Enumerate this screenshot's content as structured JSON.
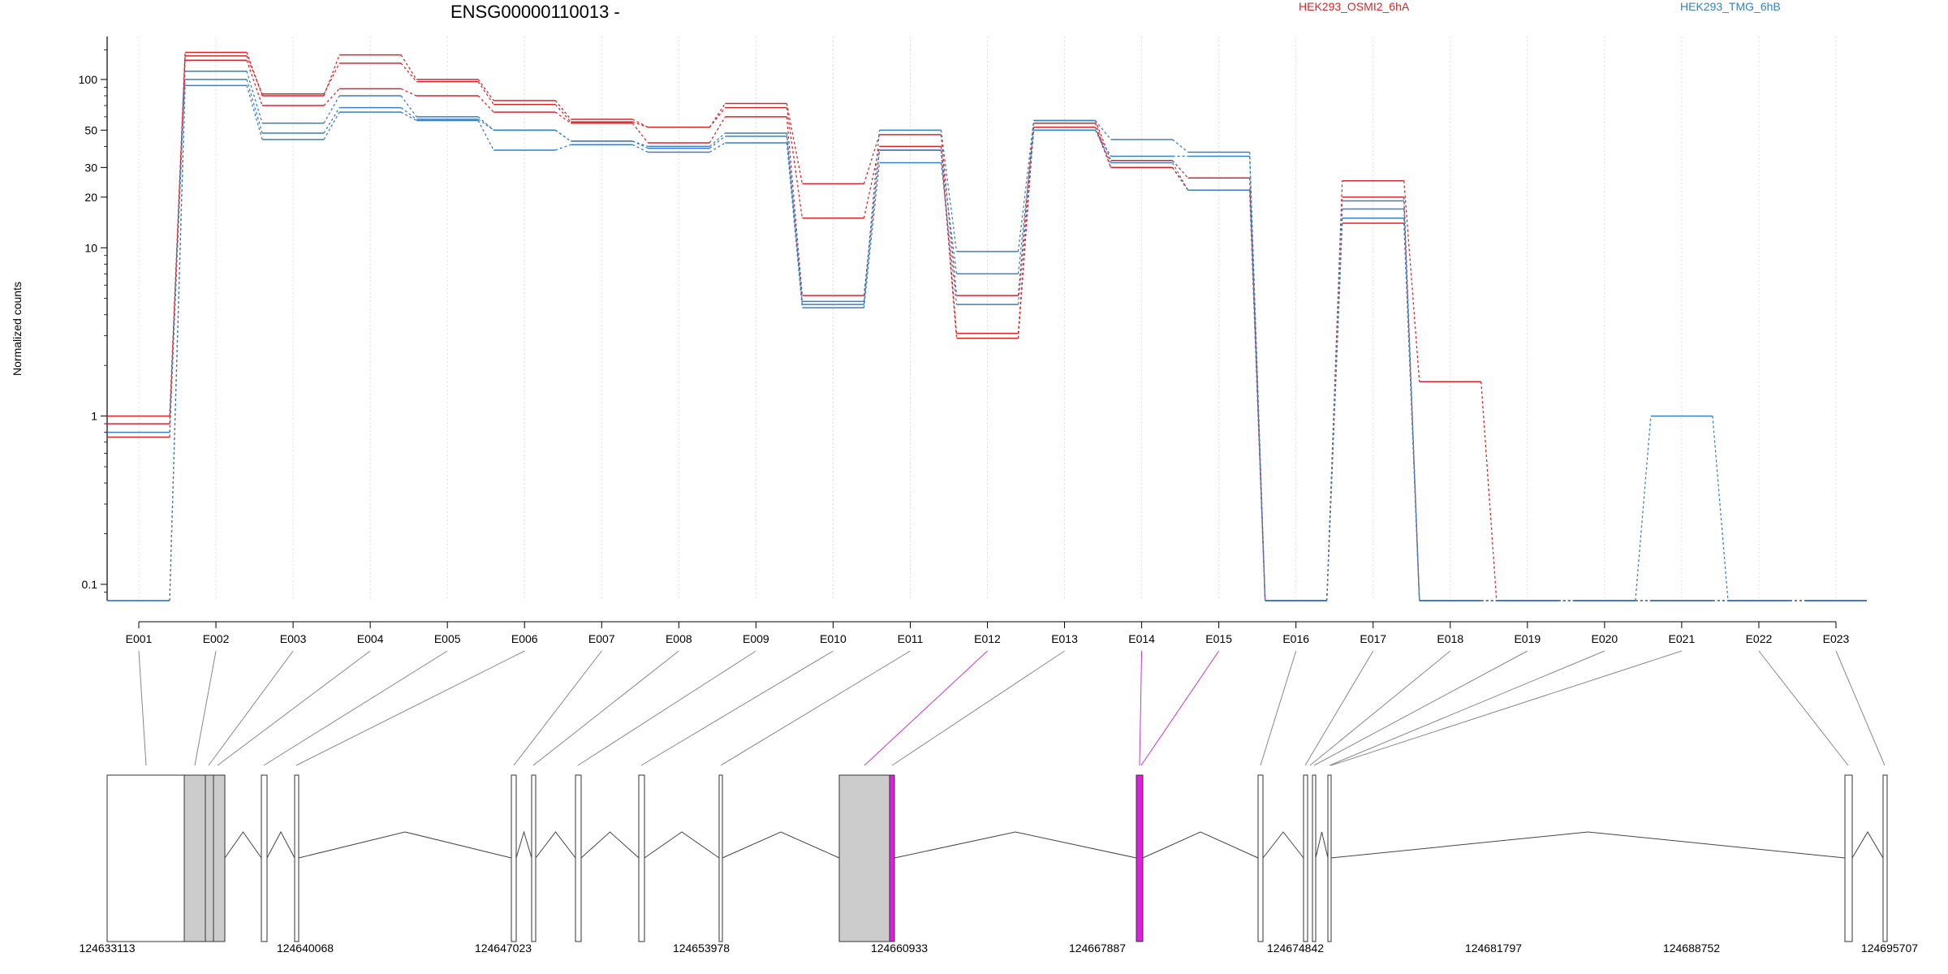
{
  "chart_data": {
    "type": "line",
    "title": "ENSG00000110013 -",
    "ylabel": "Normalized counts",
    "y_scale": "log",
    "ylim": [
      0.08,
      180
    ],
    "yticks": [
      0.1,
      1,
      10,
      20,
      30,
      50,
      100
    ],
    "ytick_labels": [
      "0.1",
      "1",
      "10",
      "20",
      "30",
      "50",
      "100"
    ],
    "grid": "vertical-dotted",
    "legend": [
      {
        "label": "HEK293_OSMI2_6hA",
        "color": "#d62728"
      },
      {
        "label": "HEK293_TMG_6hB",
        "color": "#3a7fc1"
      }
    ],
    "categories": [
      "E001",
      "E002",
      "E003",
      "E004",
      "E005",
      "E006",
      "E007",
      "E008",
      "E009",
      "E010",
      "E011",
      "E012",
      "E013",
      "E014",
      "E015",
      "E016",
      "E017",
      "E018",
      "E019",
      "E020",
      "E021",
      "E022",
      "E023"
    ],
    "series": [
      {
        "group": "red",
        "values": [
          1.0,
          145,
          80,
          140,
          100,
          75,
          58,
          52,
          72,
          24,
          47,
          5.2,
          57,
          33,
          26,
          0.08,
          25,
          1.6,
          0.08,
          0.08,
          0.08,
          0.08,
          0.08
        ]
      },
      {
        "group": "red",
        "values": [
          0.9,
          138,
          82,
          125,
          97,
          71,
          56,
          52,
          68,
          15,
          40,
          3.1,
          55,
          30,
          22,
          0.08,
          20,
          0.08,
          0.08,
          0.08,
          0.08,
          0.08,
          0.08
        ]
      },
      {
        "group": "red",
        "values": [
          0.75,
          130,
          70,
          88,
          80,
          64,
          55,
          42,
          60,
          5.2,
          38,
          2.9,
          52,
          30,
          22,
          0.08,
          14,
          0.08,
          0.08,
          0.08,
          0.08,
          0.08,
          0.08
        ]
      },
      {
        "group": "blue",
        "values": [
          0.8,
          112,
          55,
          80,
          60,
          50,
          43,
          40,
          48,
          4.8,
          50,
          9.5,
          57,
          44,
          37,
          0.08,
          19,
          0.08,
          0.08,
          0.08,
          1.0,
          0.08,
          0.08
        ]
      },
      {
        "group": "blue",
        "values": [
          0.08,
          100,
          48,
          68,
          58,
          50,
          43,
          39,
          46,
          4.6,
          38,
          7.0,
          50,
          35,
          35,
          0.08,
          17,
          0.08,
          0.08,
          0.08,
          0.08,
          0.08,
          0.08
        ]
      },
      {
        "group": "blue",
        "values": [
          0.08,
          92,
          44,
          64,
          57,
          38,
          41,
          37,
          42,
          4.4,
          32,
          4.6,
          50,
          32,
          22,
          0.08,
          15,
          0.08,
          0.08,
          0.08,
          0.08,
          0.08,
          0.08
        ]
      }
    ]
  },
  "genome": {
    "coord_labels": [
      "124633113",
      "124640068",
      "124647023",
      "124653978",
      "124660933",
      "124667887",
      "124674842",
      "124681797",
      "124688752",
      "124695707"
    ],
    "highlight_color": "#e020e0",
    "exon_fill": "#cccccc"
  }
}
